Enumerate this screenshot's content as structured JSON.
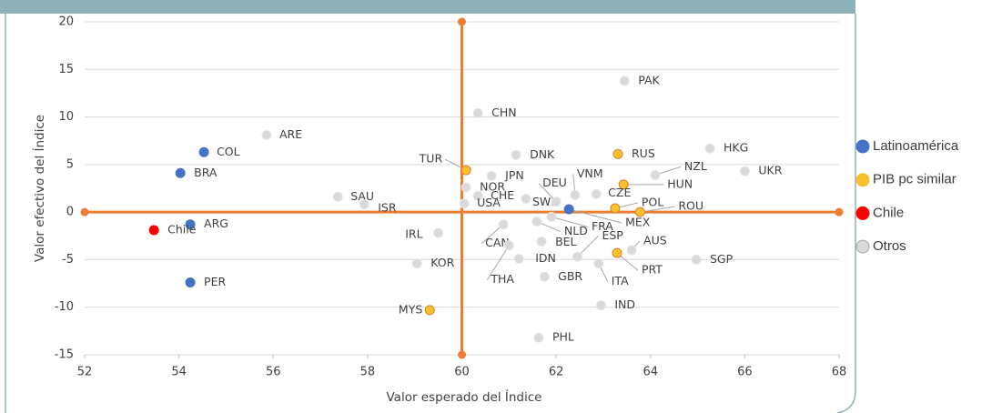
{
  "chart_data": {
    "type": "scatter",
    "xlabel": "Valor esperado del Índice",
    "ylabel": "Valor efectivo del Índice",
    "xlim": [
      52,
      68
    ],
    "xticks": [
      52,
      54,
      56,
      58,
      60,
      62,
      64,
      66,
      68
    ],
    "ylim": [
      -15,
      20
    ],
    "yticks": [
      -15,
      -10,
      -5,
      0,
      5,
      10,
      15,
      20
    ],
    "grid": true,
    "legend": "right",
    "vline_x": 60,
    "hline_y": 0,
    "ref_color": "#ed7d31",
    "series": [
      {
        "name": "Latinoamérica",
        "color": "#4472c4",
        "labels": [
          "COL",
          "BRA",
          "ARG",
          "PER",
          "MEX"
        ],
        "x": [
          54.53,
          54.03,
          54.24,
          54.24,
          62.27
        ],
        "y": [
          6.3,
          4.1,
          -1.3,
          -7.4,
          0.3
        ]
      },
      {
        "name": "PIB pc similar",
        "color": "#fbbf2d",
        "labels": [
          "TUR",
          "RUS",
          "HUN",
          "POL",
          "ROU",
          "PRT",
          "MYS"
        ],
        "x": [
          60.09,
          63.31,
          63.43,
          63.25,
          63.78,
          63.29,
          59.32
        ],
        "y": [
          4.4,
          6.1,
          2.9,
          0.4,
          0.0,
          -4.3,
          -10.3
        ]
      },
      {
        "name": "Chile",
        "color": "#ff0000",
        "labels": [
          "Chile"
        ],
        "x": [
          53.47
        ],
        "y": [
          -1.9
        ]
      },
      {
        "name": "Otros",
        "color": "#d9d9d9",
        "labels": [
          "ARE",
          "CHN",
          "PAK",
          "DNK",
          "JPN",
          "NOR",
          "CHE",
          "USA",
          "SAU",
          "ISR",
          "SWE",
          "DEU",
          "VNM",
          "CZE",
          "HKG",
          "NZL",
          "UKR",
          "FRA",
          "NLD",
          "ESP",
          "BEL",
          "IRL",
          "CAN",
          "IDN",
          "THA",
          "KOR",
          "GBR",
          "ITA",
          "AUS",
          "SGP",
          "IND",
          "PHL"
        ],
        "x": [
          55.86,
          60.34,
          63.45,
          61.15,
          60.63,
          60.09,
          60.34,
          60.05,
          57.37,
          57.93,
          61.36,
          62.0,
          62.4,
          62.85,
          65.26,
          64.1,
          66.0,
          61.9,
          61.59,
          62.45,
          61.69,
          59.5,
          60.88,
          61.21,
          61.0,
          59.05,
          61.75,
          62.9,
          63.6,
          64.97,
          62.95,
          61.63
        ],
        "y": [
          8.1,
          10.4,
          13.8,
          6.0,
          3.8,
          2.6,
          1.7,
          0.9,
          1.6,
          0.8,
          1.4,
          1.1,
          1.8,
          1.9,
          6.7,
          3.9,
          4.3,
          -0.5,
          -1.0,
          -4.7,
          -3.1,
          -2.2,
          -1.3,
          -4.9,
          -3.5,
          -5.4,
          -6.8,
          -5.4,
          -4.0,
          -5.0,
          -9.8,
          -13.2
        ]
      }
    ]
  }
}
